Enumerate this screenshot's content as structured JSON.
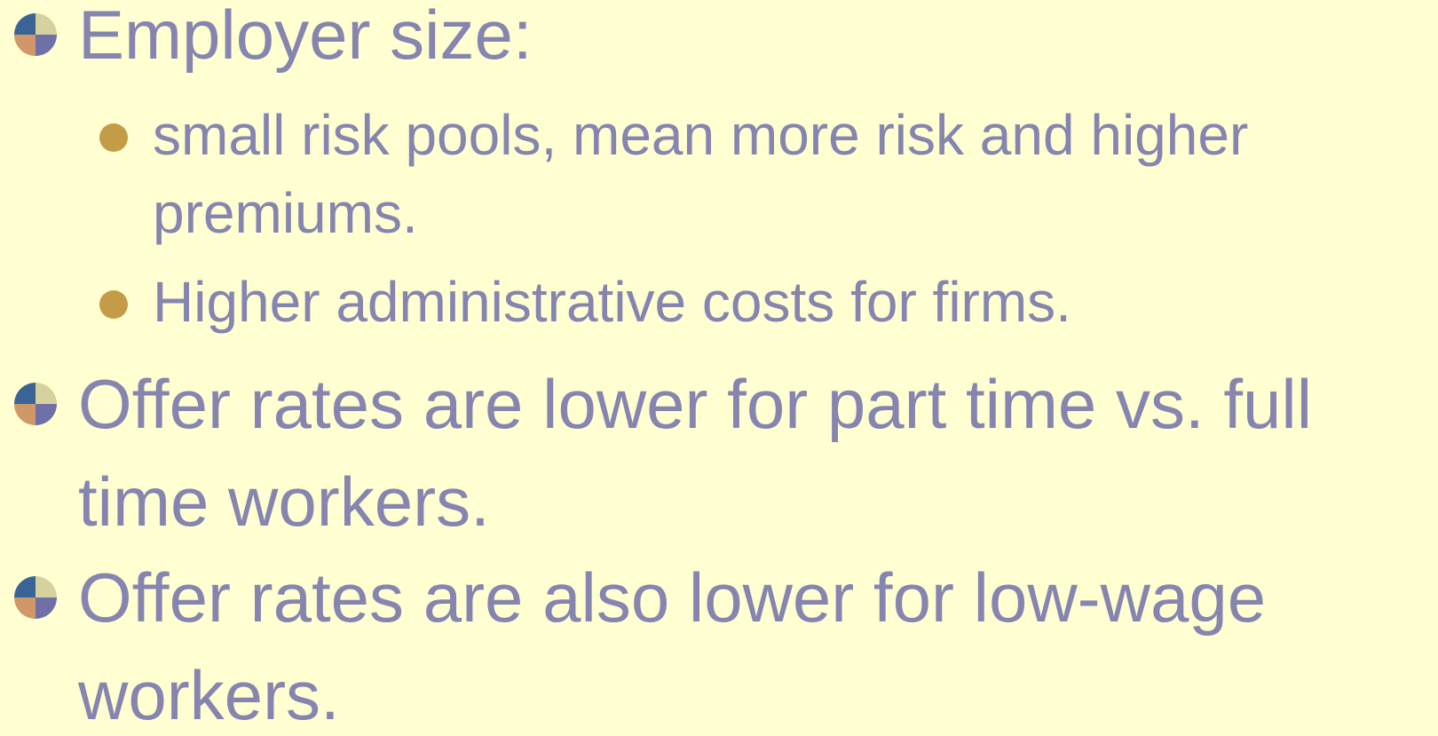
{
  "bullets": [
    {
      "text": "Employer size:",
      "sub": [
        "small risk pools, mean more risk and higher premiums.",
        "Higher administrative costs for firms."
      ]
    },
    {
      "text": "Offer rates are lower for part time vs. full time workers.",
      "sub": []
    },
    {
      "text": "Offer rates are also lower for low-wage workers.",
      "sub": []
    }
  ]
}
